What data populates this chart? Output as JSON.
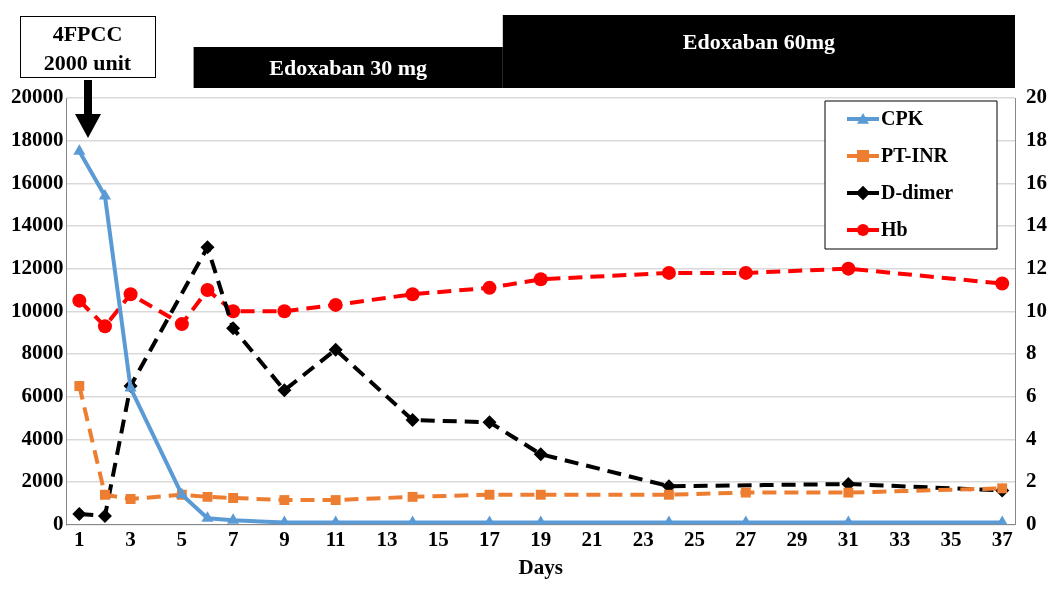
{
  "chart_data": {
    "type": "line",
    "xlabel": "Days",
    "x": [
      1,
      2,
      3,
      5,
      6,
      7,
      9,
      11,
      14,
      17,
      19,
      24,
      27,
      31,
      37
    ],
    "xlim": [
      0.5,
      37.5
    ],
    "xticks": [
      1,
      3,
      5,
      7,
      9,
      11,
      13,
      15,
      17,
      19,
      21,
      23,
      25,
      27,
      29,
      31,
      33,
      35,
      37
    ],
    "ylim": [
      0,
      20000
    ],
    "yticks": [
      0,
      2000,
      4000,
      6000,
      8000,
      10000,
      12000,
      14000,
      16000,
      18000,
      20000
    ],
    "y2lim": [
      0,
      20
    ],
    "y2ticks": [
      0,
      2,
      4,
      6,
      8,
      10,
      12,
      14,
      16,
      18,
      20
    ],
    "series": [
      {
        "name": "CPK",
        "color": "#5b9bd5",
        "marker": "triangle",
        "line_style": "solid",
        "values": [
          17500,
          15400,
          6400,
          1400,
          300,
          200,
          100,
          100,
          100,
          100,
          100,
          100,
          100,
          100,
          100
        ]
      },
      {
        "name": "PT-INR",
        "color": "#ed7d31",
        "marker": "square",
        "line_style": "dashed",
        "axis": "y2",
        "values": [
          6.5,
          1.4,
          1.2,
          1.4,
          1.3,
          1.25,
          1.15,
          1.15,
          1.3,
          1.4,
          1.4,
          1.4,
          1.5,
          1.5,
          1.7
        ]
      },
      {
        "name": "D-dimer",
        "color": "#000000",
        "marker": "diamond",
        "line_style": "dashed",
        "axis": "y2",
        "values": [
          0.5,
          0.4,
          6.5,
          null,
          13,
          9.2,
          6.3,
          8.2,
          4.9,
          4.8,
          3.3,
          1.8,
          null,
          1.9,
          1.6
        ]
      },
      {
        "name": "Hb",
        "color": "#ff0000",
        "marker": "circle",
        "line_style": "dashed",
        "axis": "y2",
        "values": [
          10.5,
          9.3,
          10.8,
          9.4,
          11.0,
          10.0,
          10.0,
          10.3,
          10.8,
          11.1,
          11.5,
          11.8,
          11.8,
          12.0,
          11.3
        ]
      }
    ],
    "annotations": [
      "4FPCC\n2000 unit",
      "Edoxaban 30 mg",
      "Edoxaban 60mg"
    ],
    "grid": "y",
    "legend": "top right"
  }
}
